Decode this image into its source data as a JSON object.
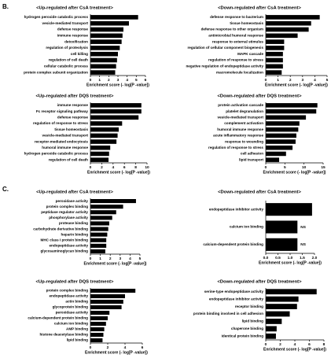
{
  "panels": [
    {
      "label": "B."
    },
    {
      "label": "C."
    }
  ],
  "chart_data": [
    {
      "type": "bar",
      "orientation": "horizontal",
      "title": "<Up-regulated after CsA treatment>",
      "xlabel": "Enrichment score (- log[P -value])",
      "color": "#000000",
      "categories": [
        "hydrogen peroxide catabolic process",
        "vesicle-mediated transport",
        "defense response",
        "immune response",
        "detoxification",
        "regulation of proteolysis",
        "cell killing",
        "regulation of cell death",
        "cellular catabolic process",
        "protein complex subunit organization"
      ],
      "values": [
        5.2,
        4.2,
        3.6,
        3.5,
        3.4,
        3.2,
        3.0,
        2.9,
        2.8,
        2.7
      ],
      "xlim": [
        0,
        6
      ],
      "xticks": [
        0,
        1,
        2,
        3,
        4,
        5,
        6
      ]
    },
    {
      "type": "bar",
      "orientation": "horizontal",
      "title": "<Down-regulated after CsA treatment>",
      "xlabel": "Enrichment score (- log[P -value])",
      "color": "#000000",
      "categories": [
        "defense response to bacterium",
        "tissue homeostasis",
        "defense response to other organism",
        "antimicrobial humoral response",
        "response to external stimulus",
        "regulation of cellular component biogenesis",
        "MAPK cascade",
        "regulation of response to stress",
        "negative regulation of endopeptidase activity",
        "macromolecule localization"
      ],
      "values": [
        4.4,
        3.7,
        3.5,
        2.6,
        1.5,
        1.5,
        1.4,
        1.4,
        1.4,
        1.3
      ],
      "xlim": [
        0,
        5
      ],
      "xticks": [
        0,
        1,
        2,
        3,
        4,
        5
      ]
    },
    {
      "type": "bar",
      "orientation": "horizontal",
      "title": "<Up-regulated after DQS treatment>",
      "xlabel": "Enrichment score (- log[P -value])",
      "color": "#000000",
      "categories": [
        "immune response",
        "Fc receptor signaling pathway",
        "defense response",
        "regulation of response to stress",
        "tissue homeostasis",
        "vesicle-mediated transport",
        "receptor-mediated endocytosis",
        "humoral immune response",
        "hydrogen peroxide catabolic process",
        "regulation of cell death"
      ],
      "values": [
        9.0,
        9.0,
        8.5,
        5.6,
        5.0,
        4.8,
        4.6,
        3.5,
        3.3,
        3.2
      ],
      "xlim": [
        0,
        10
      ],
      "xticks": [
        0,
        2,
        4,
        6,
        8,
        10
      ]
    },
    {
      "type": "bar",
      "orientation": "horizontal",
      "title": "<Down-regulated after DQS treatment>",
      "xlabel": "Enrichment score (- log[P -value])",
      "color": "#000000",
      "categories": [
        "protein activation cascade",
        "platelet degranulation",
        "vesicle-mediated transport",
        "complement activation",
        "humoral immune response",
        "acute inflammatory response",
        "response to wounding",
        "regulation of response to stress",
        "cell adhesion",
        "lipid transport"
      ],
      "values": [
        13.5,
        13.2,
        10.5,
        8.8,
        8.5,
        8.0,
        7.8,
        7.0,
        5.3,
        3.5
      ],
      "xlim": [
        0,
        15
      ],
      "xticks": [
        0,
        5,
        10,
        15
      ]
    },
    {
      "type": "bar",
      "orientation": "horizontal",
      "title": "<Up-regulated after CsA treatment>",
      "xlabel": "Enrichment score (- log[P -value])",
      "color": "#000000",
      "categories": [
        "peroxidase activity",
        "protein complex binding",
        "peptidase regulator activity",
        "phosphorylase activity",
        "protease binding",
        "carbohydrate derivative binding",
        "heparin binding",
        "MHC class I protein binding",
        "endopeptidase activity",
        "glycosaminoglycan binding"
      ],
      "values": [
        4.6,
        3.3,
        2.6,
        2.2,
        1.9,
        1.8,
        1.7,
        1.6,
        1.6,
        1.5
      ],
      "xlim": [
        0,
        5
      ],
      "xticks": [
        0,
        1,
        2,
        3,
        4,
        5
      ]
    },
    {
      "type": "bar",
      "orientation": "horizontal",
      "title": "<Down-regulated after CsA treatment>",
      "xlabel": "Enrichment score (- log[P -value])",
      "color": "#000000",
      "categories": [
        "endopeptidase inhibitor activity",
        "calcium ion binding",
        "calcium-dependent protein binding"
      ],
      "values": [
        1.9,
        1.3,
        1.3
      ],
      "significance": [
        null,
        "NS",
        "NS"
      ],
      "xlim": [
        0,
        2
      ],
      "xticks": [
        {
          "value": 0,
          "label": "0.0"
        },
        {
          "value": 0.5,
          "label": "0.5"
        },
        {
          "value": 1,
          "label": "1.0"
        },
        {
          "value": 1.5,
          "label": "1.5"
        },
        {
          "value": 2,
          "label": "2.0"
        }
      ]
    },
    {
      "type": "bar",
      "orientation": "horizontal",
      "title": "<Up-regulated after DQS treatment>",
      "xlabel": "Enrichment score (- log[P -value])",
      "color": "#000000",
      "categories": [
        "protein complex binding",
        "endopeptidase activity",
        "actin binding",
        "glycoprotein binding",
        "peroxidase activity",
        "calcium-dependent protein binding",
        "calcium ion binding",
        "AMP binding",
        "histone deacetylase binding",
        "lipid binding"
      ],
      "values": [
        5.2,
        4.0,
        3.8,
        3.6,
        2.2,
        2.0,
        1.8,
        1.6,
        1.5,
        1.4
      ],
      "xlim": [
        0,
        6
      ],
      "xticks": [
        0,
        2,
        4,
        6
      ]
    },
    {
      "type": "bar",
      "orientation": "horizontal",
      "title": "<Down-regulated after DQS treatment>",
      "xlabel": "Enrichment score (- log[P -value])",
      "color": "#000000",
      "categories": [
        "serine-type endopeptidase activity",
        "endopeptidase inhibitor activity",
        "receptor binding",
        "protein binding involved in cell adhesion",
        "lipid binding",
        "chaperone binding",
        "identical protein binding"
      ],
      "values": [
        7.0,
        4.5,
        4.3,
        3.3,
        2.2,
        1.5,
        1.4
      ],
      "xlim": [
        0,
        8
      ],
      "xticks": [
        0,
        2,
        4,
        6,
        8
      ]
    }
  ]
}
